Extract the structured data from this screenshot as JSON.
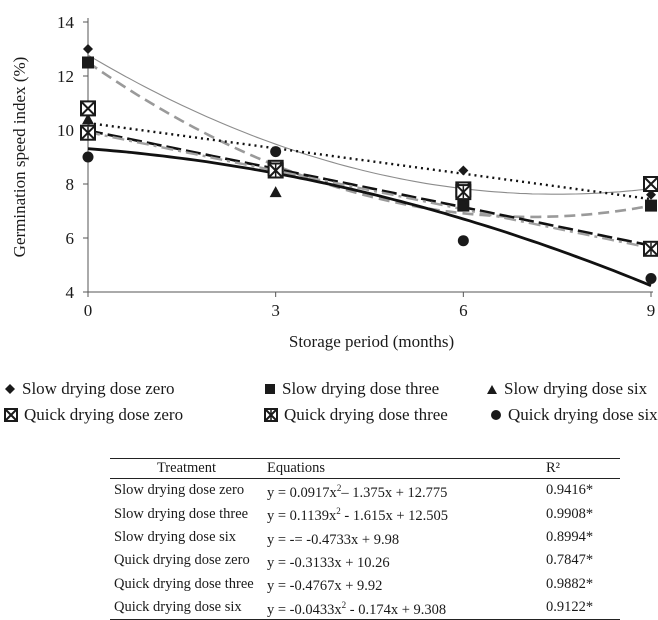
{
  "chart_data": {
    "type": "scatter",
    "xlabel": "Storage period (months)",
    "ylabel": "Germination speed index (%)",
    "x": [
      0,
      3,
      6,
      9
    ],
    "xticks": [
      "0",
      "3",
      "6",
      "9"
    ],
    "yticks": [
      "4",
      "6",
      "8",
      "10",
      "12",
      "14"
    ],
    "xlim": [
      0,
      9
    ],
    "ylim": [
      4,
      14
    ],
    "legend_position": "below",
    "series": [
      {
        "name": "Slow drying dose zero",
        "marker": "diamond",
        "line": "thin-solid",
        "color": "#8c8c8c",
        "values": [
          13.0,
          8.6,
          8.5,
          7.6
        ],
        "fit": {
          "a": 0.0917,
          "b": -1.375,
          "c": 12.775
        }
      },
      {
        "name": "Slow drying dose three",
        "marker": "square",
        "line": "dashed",
        "color": "#9a9a9a",
        "values": [
          12.5,
          8.5,
          7.2,
          7.2
        ],
        "fit": {
          "a": 0.1139,
          "b": -1.615,
          "c": 12.505
        }
      },
      {
        "name": "Slow drying dose six",
        "marker": "triangle",
        "line": "long-dash",
        "color": "#111111",
        "values": [
          10.4,
          7.7,
          7.2,
          5.6
        ],
        "fit": {
          "a": 0,
          "b": -0.4733,
          "c": 9.98
        }
      },
      {
        "name": "Quick drying dose zero",
        "marker": "boxed-x",
        "line": "dotted",
        "color": "#111111",
        "values": [
          10.8,
          8.6,
          7.8,
          8.0
        ],
        "fit": {
          "a": 0,
          "b": -0.3133,
          "c": 10.26
        }
      },
      {
        "name": "Quick drying dose three",
        "marker": "boxed-star",
        "line": "dash-dot",
        "color": "#a0a0a0",
        "values": [
          9.9,
          8.5,
          7.7,
          5.6
        ],
        "fit": {
          "a": 0,
          "b": -0.4767,
          "c": 9.92
        }
      },
      {
        "name": "Quick drying dose six",
        "marker": "circle",
        "line": "thick-solid",
        "color": "#111111",
        "values": [
          9.0,
          9.2,
          5.9,
          4.5
        ],
        "fit": {
          "a": -0.0433,
          "b": -0.174,
          "c": 9.308
        }
      }
    ]
  },
  "table": {
    "headers": [
      "Treatment",
      "Equations",
      "R²"
    ],
    "rows": [
      {
        "treatment": "Slow drying dose zero",
        "eq_pre": "y = 0.0917x",
        "eq_sup": "2",
        "eq_post": "– 1.375x + 12.775",
        "r2": "0.9416*"
      },
      {
        "treatment": "Slow drying dose three",
        "eq_pre": "y = 0.1139x",
        "eq_sup": "2",
        "eq_post": " - 1.615x + 12.505",
        "r2": "0.9908*"
      },
      {
        "treatment": "Slow drying dose six",
        "eq_pre": "y = -= -0.4733x + 9.98",
        "eq_sup": "",
        "eq_post": "",
        "r2": "0.8994*"
      },
      {
        "treatment": "Quick drying dose zero",
        "eq_pre": "y = -0.3133x + 10.26",
        "eq_sup": "",
        "eq_post": "",
        "r2": "0.7847*"
      },
      {
        "treatment": "Quick drying dose three",
        "eq_pre": "y = -0.4767x + 9.92",
        "eq_sup": "",
        "eq_post": "",
        "r2": "0.9882*"
      },
      {
        "treatment": "Quick drying dose six",
        "eq_pre": "y = -0.0433x",
        "eq_sup": "2",
        "eq_post": " - 0.174x + 9.308",
        "r2": "0.9122*"
      }
    ]
  }
}
